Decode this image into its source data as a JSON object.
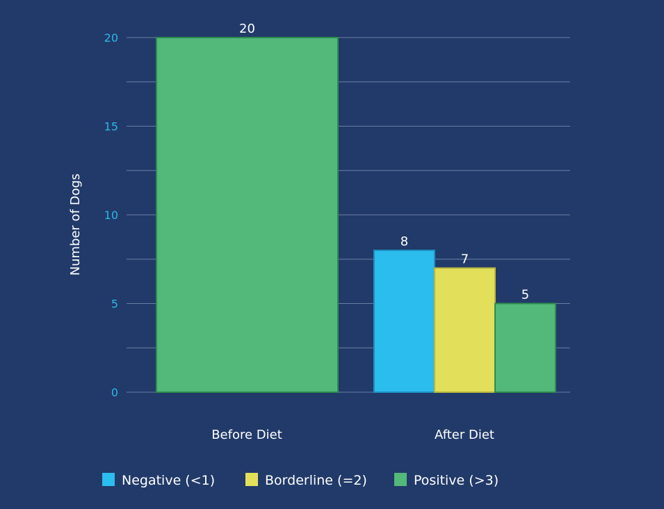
{
  "chart_data": {
    "type": "bar",
    "title": "",
    "xlabel": "",
    "ylabel": "Number of Dogs",
    "ylim": [
      0,
      20
    ],
    "y_ticks": [
      "0",
      "5",
      "10",
      "15",
      "20"
    ],
    "grid": true,
    "legend_position": "bottom",
    "groups": [
      {
        "label": "Before Diet",
        "bars": [
          {
            "series": "Positive (>3)",
            "value": 20,
            "label": "20"
          }
        ]
      },
      {
        "label": "After Diet",
        "bars": [
          {
            "series": "Negative (<1)",
            "value": 8,
            "label": "8"
          },
          {
            "series": "Borderline (=2)",
            "value": 7,
            "label": "7"
          },
          {
            "series": "Positive (>3)",
            "value": 5,
            "label": "5"
          }
        ]
      }
    ],
    "series": [
      {
        "name": "Negative (<1)",
        "color": "#2BBDEE"
      },
      {
        "name": "Borderline (=2)",
        "color": "#E2E05A"
      },
      {
        "name": "Positive (>3)",
        "color": "#52B97A"
      }
    ]
  },
  "colors": {
    "background": "#213A69",
    "gridline": "#6B7FA5",
    "tick_text": "#2BB8E6",
    "text": "#FFFFFF",
    "bar_border_negative": "#1E90C0",
    "bar_border_borderline": "#B8B440",
    "bar_border_positive": "#2E8A4E"
  }
}
